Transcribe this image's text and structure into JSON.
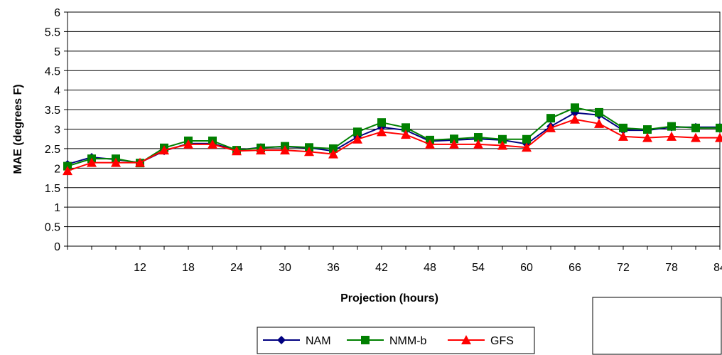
{
  "chart_data": {
    "type": "line",
    "xlabel": "Projection (hours)",
    "ylabel": "MAE (degrees F)",
    "ylim": [
      0,
      6
    ],
    "yticks": [
      0,
      0.5,
      1,
      1.5,
      2,
      2.5,
      3,
      3.5,
      4,
      4.5,
      5,
      5.5,
      6
    ],
    "ytick_labels": [
      "0",
      "0.5",
      "1",
      "1.5",
      "2",
      "2.5",
      "3",
      "3.5",
      "4",
      "4.5",
      "5",
      "5.5",
      "6"
    ],
    "xlim": [
      3,
      84
    ],
    "xticks": [
      12,
      18,
      24,
      30,
      36,
      42,
      48,
      54,
      60,
      66,
      72,
      78,
      84
    ],
    "xtick_labels": [
      "12",
      "18",
      "24",
      "30",
      "36",
      "42",
      "48",
      "54",
      "60",
      "66",
      "72",
      "78",
      "84"
    ],
    "x": [
      3,
      6,
      9,
      12,
      15,
      18,
      21,
      24,
      27,
      30,
      33,
      36,
      39,
      42,
      45,
      48,
      51,
      54,
      57,
      60,
      63,
      66,
      69,
      72,
      75,
      78,
      81,
      84
    ],
    "grid": "horizontal",
    "legend_position": "bottom",
    "series": [
      {
        "name": "NAM",
        "color": "#000080",
        "marker": "diamond",
        "values": [
          2.1,
          2.28,
          2.22,
          2.14,
          2.44,
          2.63,
          2.63,
          2.46,
          2.53,
          2.55,
          2.52,
          2.44,
          2.8,
          3.05,
          2.97,
          2.69,
          2.72,
          2.75,
          2.72,
          2.62,
          3.07,
          3.42,
          3.36,
          2.97,
          2.97,
          3.05,
          3.05,
          3.05
        ]
      },
      {
        "name": "NMM-b",
        "color": "#008000",
        "marker": "square",
        "values": [
          2.05,
          2.24,
          2.24,
          2.13,
          2.52,
          2.7,
          2.7,
          2.46,
          2.52,
          2.56,
          2.53,
          2.5,
          2.93,
          3.17,
          3.04,
          2.72,
          2.75,
          2.79,
          2.74,
          2.74,
          3.28,
          3.55,
          3.43,
          3.03,
          2.99,
          3.07,
          3.03,
          3.03
        ]
      },
      {
        "name": "GFS",
        "color": "#ff0000",
        "marker": "triangle",
        "values": [
          1.93,
          2.14,
          2.14,
          2.14,
          2.46,
          2.61,
          2.61,
          2.44,
          2.46,
          2.46,
          2.42,
          2.36,
          2.74,
          2.93,
          2.86,
          2.61,
          2.61,
          2.61,
          2.58,
          2.53,
          3.03,
          3.25,
          3.14,
          2.81,
          2.78,
          2.81,
          2.78,
          2.78
        ]
      }
    ]
  }
}
